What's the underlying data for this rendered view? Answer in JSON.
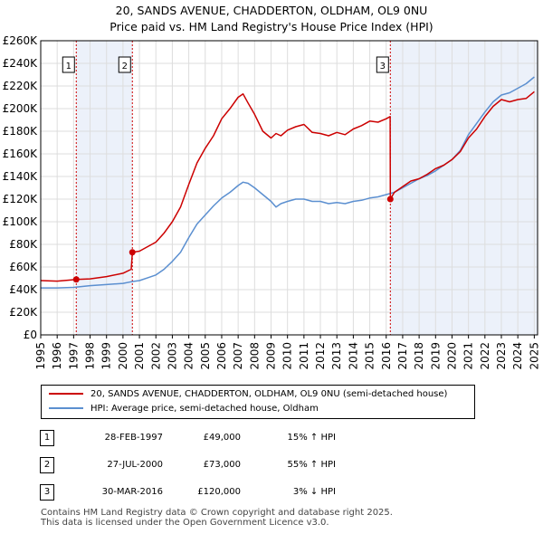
{
  "header": {
    "title_line1": "20, SANDS AVENUE, CHADDERTON, OLDHAM, OL9 0NU",
    "title_line2": "Price paid vs. HM Land Registry's House Price Index (HPI)"
  },
  "chart_data": {
    "type": "line",
    "xlim": [
      1995,
      2025.2
    ],
    "ylim": [
      0,
      260000
    ],
    "x_ticks": [
      "1995",
      "1996",
      "1997",
      "1998",
      "1999",
      "2000",
      "2001",
      "2002",
      "2003",
      "2004",
      "2005",
      "2006",
      "2007",
      "2008",
      "2009",
      "2010",
      "2011",
      "2012",
      "2013",
      "2014",
      "2015",
      "2016",
      "2017",
      "2018",
      "2019",
      "2020",
      "2021",
      "2022",
      "2023",
      "2024",
      "2025"
    ],
    "y_ticks": [
      "£0",
      "£20K",
      "£40K",
      "£60K",
      "£80K",
      "£100K",
      "£120K",
      "£140K",
      "£160K",
      "£180K",
      "£200K",
      "£220K",
      "£240K",
      "£260K"
    ],
    "shaded_periods": [
      [
        1997.16,
        2000.57
      ],
      [
        2016.25,
        2025.2
      ]
    ],
    "series": [
      {
        "name": "20, SANDS AVENUE, CHADDERTON, OLDHAM, OL9 0NU (semi-detached house)",
        "color": "#cc0000",
        "x": [
          1995,
          1996,
          1996.8,
          1997.16,
          1998,
          1999,
          2000,
          2000.5,
          2000.57,
          2001,
          2001.5,
          2002,
          2002.5,
          2003,
          2003.5,
          2004,
          2004.5,
          2005,
          2005.5,
          2006,
          2006.5,
          2007,
          2007.3,
          2007.6,
          2008,
          2008.5,
          2009,
          2009.3,
          2009.6,
          2010,
          2010.5,
          2011,
          2011.5,
          2012,
          2012.5,
          2013,
          2013.5,
          2014,
          2014.5,
          2015,
          2015.5,
          2016,
          2016.24,
          2016.25,
          2016.5,
          2017,
          2017.5,
          2018,
          2018.5,
          2019,
          2019.5,
          2020,
          2020.5,
          2021,
          2021.5,
          2022,
          2022.5,
          2023,
          2023.5,
          2024,
          2024.5,
          2025
        ],
        "values": [
          48000,
          47500,
          48500,
          49000,
          49500,
          51500,
          54500,
          58000,
          73000,
          74000,
          78000,
          82000,
          90000,
          100000,
          113000,
          133000,
          152000,
          165000,
          176000,
          191000,
          200000,
          210000,
          213000,
          205000,
          195000,
          180000,
          174000,
          178000,
          176000,
          181000,
          184000,
          186000,
          179000,
          178000,
          176000,
          179000,
          177000,
          182000,
          185000,
          189000,
          188000,
          191000,
          193000,
          120000,
          126000,
          131000,
          136000,
          138000,
          142000,
          147000,
          150000,
          155000,
          162000,
          174000,
          182000,
          193000,
          202000,
          208000,
          206000,
          208000,
          209000,
          215000
        ]
      },
      {
        "name": "HPI: Average price, semi-detached house, Oldham",
        "color": "#5b8fd0",
        "x": [
          1995,
          1996,
          1997,
          1998,
          1999,
          2000,
          2000.5,
          2001,
          2001.5,
          2002,
          2002.5,
          2003,
          2003.5,
          2004,
          2004.5,
          2005,
          2005.5,
          2006,
          2006.5,
          2007,
          2007.3,
          2007.6,
          2008,
          2008.5,
          2009,
          2009.3,
          2009.6,
          2010,
          2010.5,
          2011,
          2011.5,
          2012,
          2012.5,
          2013,
          2013.5,
          2014,
          2014.5,
          2015,
          2015.5,
          2016,
          2016.5,
          2017,
          2017.5,
          2018,
          2018.5,
          2019,
          2019.5,
          2020,
          2020.5,
          2021,
          2021.5,
          2022,
          2022.5,
          2023,
          2023.5,
          2024,
          2024.5,
          2025
        ],
        "values": [
          41500,
          41500,
          42000,
          43500,
          44500,
          45500,
          47000,
          48000,
          50500,
          53000,
          58000,
          65000,
          73000,
          86000,
          98000,
          106000,
          114000,
          121000,
          126000,
          132000,
          135000,
          134000,
          130000,
          124000,
          118000,
          113000,
          116000,
          118000,
          120000,
          120000,
          118000,
          118000,
          116000,
          117000,
          116000,
          118000,
          119000,
          121000,
          122000,
          124000,
          126000,
          130000,
          134000,
          138000,
          141000,
          145000,
          150000,
          155000,
          163000,
          177000,
          187000,
          197000,
          206000,
          212000,
          214000,
          218000,
          222000,
          228000
        ]
      }
    ],
    "sales": [
      {
        "label": "1",
        "year": 1997.16,
        "price": 49000
      },
      {
        "label": "2",
        "year": 2000.57,
        "price": 73000
      },
      {
        "label": "3",
        "year": 2016.25,
        "price": 120000
      }
    ]
  },
  "legend": {
    "property_label": "20, SANDS AVENUE, CHADDERTON, OLDHAM, OL9 0NU (semi-detached house)",
    "hpi_label": "HPI: Average price, semi-detached house, Oldham",
    "property_color": "#cc0000",
    "hpi_color": "#5b8fd0"
  },
  "sales_table": [
    {
      "num": "1",
      "date": "28-FEB-1997",
      "price": "£49,000",
      "hpi": "15% ↑ HPI"
    },
    {
      "num": "2",
      "date": "27-JUL-2000",
      "price": "£73,000",
      "hpi": "55% ↑ HPI"
    },
    {
      "num": "3",
      "date": "30-MAR-2016",
      "price": "£120,000",
      "hpi": "3% ↓ HPI"
    }
  ],
  "footer": {
    "line1": "Contains HM Land Registry data © Crown copyright and database right 2025.",
    "line2": "This data is licensed under the Open Government Licence v3.0."
  }
}
